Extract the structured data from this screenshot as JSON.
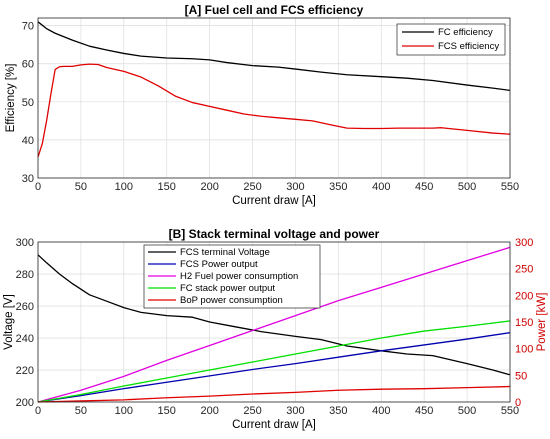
{
  "chart_data": [
    {
      "type": "line",
      "title": "[A] Fuel cell and FCS efficiency",
      "xlabel": "Current draw [A]",
      "ylabel": "Efficiency [%]",
      "xlim": [
        0,
        550
      ],
      "ylim": [
        30,
        72
      ],
      "xticks": [
        "0",
        "50",
        "100",
        "150",
        "200",
        "250",
        "300",
        "350",
        "400",
        "450",
        "500",
        "550"
      ],
      "yticks": [
        "30",
        "40",
        "50",
        "60",
        "70"
      ],
      "grid": true,
      "legend_position": "top-right",
      "series": [
        {
          "name": "FC efficiency",
          "color": "#000000",
          "x": [
            0,
            10,
            20,
            40,
            60,
            80,
            100,
            120,
            150,
            180,
            200,
            220,
            250,
            280,
            300,
            330,
            360,
            400,
            430,
            460,
            500,
            530,
            550
          ],
          "y": [
            71,
            69.2,
            68,
            66.2,
            64.6,
            63.6,
            62.7,
            62.0,
            61.5,
            61.3,
            61.0,
            60.3,
            59.5,
            59.1,
            58.6,
            57.8,
            57.1,
            56.6,
            56.2,
            55.6,
            54.4,
            53.6,
            53
          ]
        },
        {
          "name": "FCS efficiency",
          "color": "#e00000",
          "x": [
            0,
            5,
            10,
            15,
            20,
            25,
            30,
            40,
            50,
            60,
            70,
            80,
            100,
            120,
            140,
            160,
            180,
            200,
            220,
            240,
            260,
            280,
            300,
            320,
            340,
            360,
            380,
            400,
            420,
            440,
            460,
            470,
            500,
            530,
            550
          ],
          "y": [
            35.5,
            39,
            45,
            52,
            58.5,
            59.2,
            59.3,
            59.3,
            59.7,
            59.9,
            59.8,
            59.0,
            58.0,
            56.5,
            54.2,
            51.5,
            49.8,
            48.8,
            47.8,
            46.8,
            46.2,
            45.8,
            45.4,
            45.0,
            44.0,
            43.1,
            43.0,
            43.0,
            43.1,
            43.1,
            43.1,
            43.2,
            42.5,
            41.8,
            41.5
          ]
        }
      ]
    },
    {
      "type": "line",
      "title": "[B] Stack terminal voltage and power",
      "xlabel": "Current draw [A]",
      "ylabel": "Voltage [V]",
      "ylabel_right": "Power [kW]",
      "xlim": [
        0,
        550
      ],
      "ylim": [
        200,
        300
      ],
      "ylim_right": [
        0,
        300
      ],
      "xticks": [
        "0",
        "50",
        "100",
        "150",
        "200",
        "250",
        "300",
        "350",
        "400",
        "450",
        "500",
        "550"
      ],
      "yticks": [
        "200",
        "220",
        "240",
        "260",
        "280",
        "300"
      ],
      "yticks_right": [
        "0",
        "50",
        "100",
        "150",
        "200",
        "250",
        "300"
      ],
      "grid": true,
      "legend_position": "top-center",
      "series": [
        {
          "name": "FCS terminal Voltage",
          "color": "#000000",
          "axis": "left",
          "x": [
            0,
            10,
            25,
            40,
            60,
            80,
            100,
            120,
            150,
            180,
            200,
            230,
            260,
            300,
            330,
            360,
            400,
            430,
            460,
            500,
            530,
            550
          ],
          "y": [
            292,
            287,
            280,
            274,
            267,
            263,
            259,
            256,
            254,
            253,
            250,
            247,
            244,
            241,
            239,
            235,
            232,
            230,
            229,
            224,
            220,
            217
          ]
        },
        {
          "name": "FCS Power output",
          "color": "#0000b0",
          "axis": "right",
          "x": [
            0,
            50,
            100,
            150,
            200,
            250,
            300,
            350,
            400,
            450,
            500,
            550
          ],
          "y": [
            0,
            12,
            25,
            37,
            49,
            61,
            72,
            84,
            96,
            107,
            118,
            130
          ]
        },
        {
          "name": "H2 Fuel power consumption",
          "color": "#e000e0",
          "axis": "right",
          "x": [
            0,
            50,
            100,
            150,
            200,
            250,
            300,
            350,
            400,
            450,
            500,
            550
          ],
          "y": [
            0,
            22,
            48,
            78,
            106,
            134,
            162,
            190,
            215,
            240,
            265,
            290
          ]
        },
        {
          "name": "FC stack power output",
          "color": "#00e000",
          "axis": "right",
          "x": [
            0,
            50,
            100,
            150,
            200,
            250,
            300,
            350,
            400,
            450,
            500,
            550
          ],
          "y": [
            0,
            14,
            30,
            45,
            60,
            75,
            90,
            105,
            120,
            133,
            142,
            152
          ]
        },
        {
          "name": "BoP power consumption",
          "color": "#e00000",
          "axis": "right",
          "x": [
            0,
            50,
            100,
            150,
            200,
            250,
            300,
            350,
            400,
            450,
            500,
            550
          ],
          "y": [
            0,
            2,
            4,
            8,
            11,
            15,
            18,
            22,
            24,
            25,
            27,
            29
          ]
        }
      ]
    }
  ]
}
